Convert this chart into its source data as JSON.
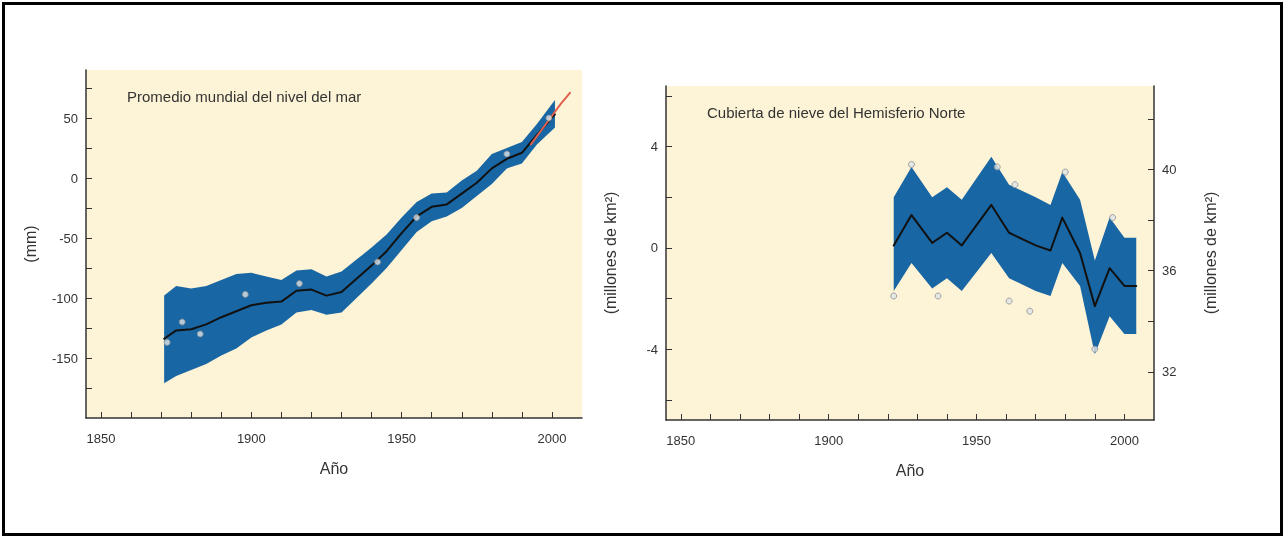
{
  "chart_data": [
    {
      "type": "line",
      "title": "Promedio mundial del nivel del mar",
      "xlabel": "Año",
      "ylabel": "(mm)",
      "xlim": [
        1845,
        2010
      ],
      "ylim": [
        -200,
        90
      ],
      "xticks": [
        1850,
        {
          "value": 1860,
          "label": null
        },
        {
          "value": 1870,
          "label": null
        },
        {
          "value": 1880,
          "label": null
        },
        {
          "value": 1890,
          "label": null
        },
        1900,
        {
          "value": 1910,
          "label": null
        },
        {
          "value": 1920,
          "label": null
        },
        {
          "value": 1930,
          "label": null
        },
        {
          "value": 1940,
          "label": null
        },
        1950,
        {
          "value": 1960,
          "label": null
        },
        {
          "value": 1970,
          "label": null
        },
        {
          "value": 1980,
          "label": null
        },
        {
          "value": 1990,
          "label": null
        },
        2000
      ],
      "yticks": [
        {
          "value": -175,
          "label": null
        },
        -150,
        {
          "value": -125,
          "label": null
        },
        -100,
        {
          "value": -75,
          "label": null
        },
        -50,
        {
          "value": -25,
          "label": null
        },
        0,
        {
          "value": 25,
          "label": null
        },
        50,
        {
          "value": 75,
          "label": null
        }
      ],
      "marker": "none",
      "line_style": "solid",
      "grid": false,
      "series": [
        {
          "color": "#111111",
          "x": [
            1871,
            1875,
            1880,
            1885,
            1890,
            1895,
            1900,
            1905,
            1910,
            1915,
            1920,
            1925,
            1930,
            1935,
            1940,
            1945,
            1950,
            1955,
            1960,
            1965,
            1970,
            1975,
            1980,
            1985,
            1990,
            1995,
            2001
          ],
          "values": [
            -134,
            -127,
            -126,
            -122,
            -116,
            -111,
            -106,
            -104,
            -103,
            -94,
            -93,
            -98,
            -95,
            -84,
            -73,
            -61,
            -46,
            -32,
            -24,
            -22,
            -13,
            -4,
            8,
            16,
            21,
            36,
            53
          ],
          "lower": [
            -171,
            -165,
            -160,
            -155,
            -148,
            -142,
            -133,
            -127,
            -122,
            -112,
            -110,
            -114,
            -112,
            -100,
            -88,
            -75,
            -60,
            -45,
            -36,
            -32,
            -25,
            -15,
            -5,
            8,
            12,
            28,
            42
          ],
          "upper": [
            -98,
            -90,
            -92,
            -90,
            -85,
            -80,
            -79,
            -82,
            -85,
            -77,
            -76,
            -82,
            -78,
            -68,
            -58,
            -47,
            -33,
            -20,
            -13,
            -12,
            -2,
            6,
            20,
            25,
            30,
            45,
            65
          ]
        },
        {
          "type": "scatter",
          "marker": "circle",
          "color": "#dfe3e6",
          "x": [
            1872,
            1877,
            1883,
            1898,
            1916,
            1942,
            1955,
            1985,
            1999
          ],
          "values": [
            -137,
            -120,
            -130,
            -97,
            -88,
            -70,
            -33,
            20,
            50
          ]
        },
        {
          "color": "#e0604e",
          "x": [
            1993,
            1998,
            2003,
            2006
          ],
          "values": [
            28,
            45,
            62,
            71
          ]
        }
      ]
    },
    {
      "type": "line",
      "title": "Cubierta de nieve del Hemisferio Norte",
      "xlabel": "Año",
      "ylabel": "(millones de km²)",
      "y2label": "(millones de km²)",
      "xlim": [
        1845,
        2010
      ],
      "ylim": [
        -6.8,
        6.4
      ],
      "y2lim": [
        30.1,
        43.3
      ],
      "xticks": [
        1850,
        {
          "value": 1860,
          "label": null
        },
        {
          "value": 1870,
          "label": null
        },
        {
          "value": 1880,
          "label": null
        },
        {
          "value": 1890,
          "label": null
        },
        1900,
        {
          "value": 1910,
          "label": null
        },
        {
          "value": 1920,
          "label": null
        },
        {
          "value": 1930,
          "label": null
        },
        {
          "value": 1940,
          "label": null
        },
        1950,
        {
          "value": 1960,
          "label": null
        },
        {
          "value": 1970,
          "label": null
        },
        {
          "value": 1980,
          "label": null
        },
        {
          "value": 1990,
          "label": null
        },
        2000
      ],
      "yticks": [
        {
          "value": -6,
          "label": null
        },
        -4,
        {
          "value": -2,
          "label": null
        },
        0,
        {
          "value": 2,
          "label": null
        },
        4,
        {
          "value": 6,
          "label": null
        }
      ],
      "y2ticks": [
        32,
        {
          "value": 34,
          "label": null
        },
        36,
        {
          "value": 38,
          "label": null
        },
        40,
        {
          "value": 42,
          "label": null
        }
      ],
      "marker": "none",
      "line_style": "solid",
      "grid": false,
      "series": [
        {
          "color": "#111111",
          "x": [
            1922,
            1928,
            1935,
            1940,
            1945,
            1955,
            1961,
            1970,
            1975,
            1979,
            1985,
            1990,
            1995,
            2000,
            2004
          ],
          "values": [
            0.1,
            1.3,
            0.2,
            0.6,
            0.1,
            1.7,
            0.6,
            0.1,
            -0.1,
            1.2,
            -0.2,
            -2.3,
            -0.8,
            -1.5,
            -1.5
          ],
          "lower": [
            -1.7,
            -0.6,
            -1.6,
            -1.2,
            -1.7,
            -0.2,
            -1.2,
            -1.7,
            -1.9,
            -0.6,
            -1.5,
            -4.2,
            -2.7,
            -3.4,
            -3.4
          ],
          "upper": [
            2.0,
            3.2,
            2.0,
            2.4,
            1.9,
            3.6,
            2.5,
            2.0,
            1.7,
            3.0,
            1.9,
            -0.5,
            1.2,
            0.4,
            0.4
          ]
        },
        {
          "type": "scatter",
          "marker": "circle",
          "color": "#dfe3e6",
          "x": [
            1922,
            1928,
            1937,
            1957,
            1961,
            1963,
            1968,
            1980,
            1990,
            1996
          ],
          "values": [
            -1.9,
            3.3,
            -1.9,
            3.2,
            -2.1,
            2.5,
            -2.5,
            3.0,
            -4.0,
            1.2
          ]
        }
      ]
    }
  ]
}
